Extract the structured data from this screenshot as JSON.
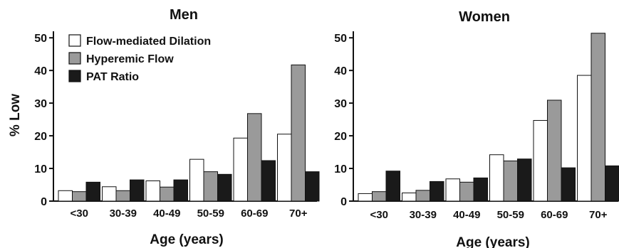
{
  "ylabel": "% Low",
  "legend": [
    {
      "name": "Flow-mediated Dilation",
      "color": "#ffffff"
    },
    {
      "name": "Hyperemic Flow",
      "color": "#9a9a9a"
    },
    {
      "name": "PAT Ratio",
      "color": "#1a1a1a"
    }
  ],
  "chart_data": [
    {
      "type": "bar",
      "title": "Men",
      "xlabel": "Age (years)",
      "ylabel": "% Low",
      "ylim": [
        0,
        52
      ],
      "yticks": [
        0,
        10,
        20,
        30,
        40,
        50
      ],
      "categories": [
        "<30",
        "30-39",
        "40-49",
        "50-59",
        "60-69",
        "70+"
      ],
      "legend_position": "top-left",
      "series": [
        {
          "name": "Flow-mediated Dilation",
          "color": "#ffffff",
          "values": [
            3.2,
            4.4,
            6.2,
            12.8,
            19.3,
            20.5
          ]
        },
        {
          "name": "Hyperemic Flow",
          "color": "#9a9a9a",
          "values": [
            2.9,
            3.2,
            4.3,
            9.0,
            26.8,
            41.7
          ]
        },
        {
          "name": "PAT Ratio",
          "color": "#1a1a1a",
          "values": [
            5.8,
            6.5,
            6.5,
            8.2,
            12.4,
            9.0
          ]
        }
      ]
    },
    {
      "type": "bar",
      "title": "Women",
      "xlabel": "Age (years)",
      "ylabel": "",
      "ylim": [
        0,
        52
      ],
      "yticks": [
        0,
        10,
        20,
        30,
        40,
        50
      ],
      "categories": [
        "<30",
        "30-39",
        "40-49",
        "50-59",
        "60-69",
        "70+"
      ],
      "series": [
        {
          "name": "Flow-mediated Dilation",
          "color": "#ffffff",
          "values": [
            2.3,
            2.5,
            6.8,
            14.2,
            24.7,
            38.5
          ]
        },
        {
          "name": "Hyperemic Flow",
          "color": "#9a9a9a",
          "values": [
            2.9,
            3.3,
            5.8,
            12.3,
            30.9,
            51.4
          ]
        },
        {
          "name": "PAT Ratio",
          "color": "#1a1a1a",
          "values": [
            9.2,
            6.0,
            7.1,
            12.9,
            10.2,
            10.8
          ]
        }
      ]
    }
  ]
}
